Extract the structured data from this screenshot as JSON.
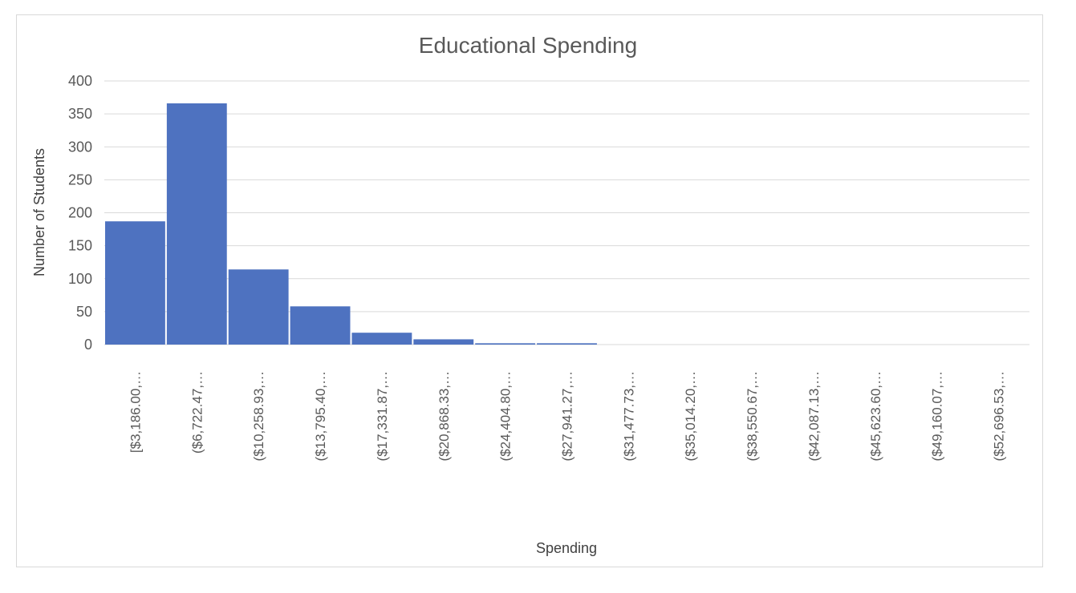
{
  "chart_data": {
    "type": "bar",
    "title": "Educational Spending",
    "xlabel": "Spending",
    "ylabel": "Number of Students",
    "ylim": [
      0,
      400
    ],
    "yticks": [
      0,
      50,
      100,
      150,
      200,
      250,
      300,
      350,
      400
    ],
    "grid": true,
    "legend": "none",
    "bar_color": "#4e72c0",
    "categories": [
      "[$3,186.00,…",
      "($6,722.47,…",
      "($10,258.93,…",
      "($13,795.40,…",
      "($17,331.87,…",
      "($20,868.33,…",
      "($24,404.80,…",
      "($27,941.27,…",
      "($31,477.73,…",
      "($35,014.20,…",
      "($38,550.67,…",
      "($42,087.13,…",
      "($45,623.60,…",
      "($49,160.07,…",
      "($52,696.53,…"
    ],
    "values": [
      187,
      366,
      114,
      58,
      18,
      8,
      2,
      2,
      0,
      0,
      0,
      0,
      0,
      0,
      0
    ]
  }
}
